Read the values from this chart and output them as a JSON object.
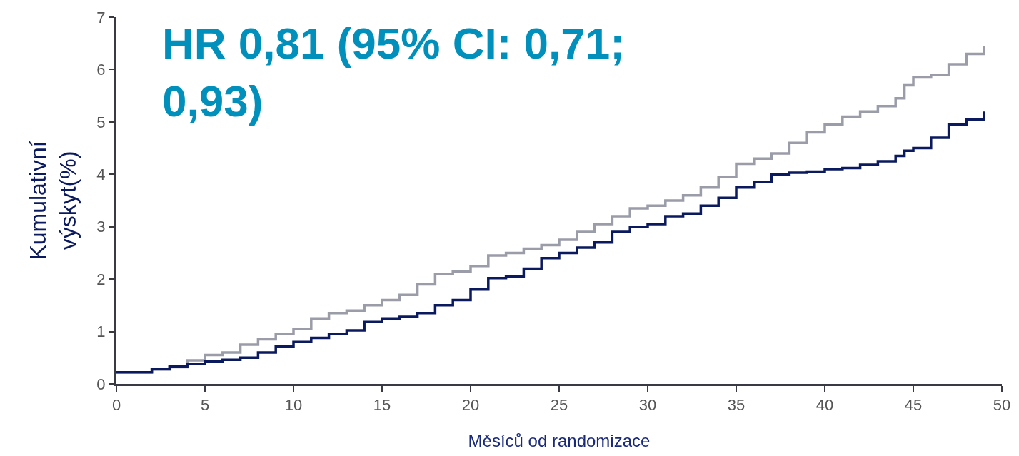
{
  "chart_data": {
    "type": "step",
    "xlabel": "Měsíců od randomizace",
    "ylabel": "Kumulativní\nvýskyt(%)",
    "annotations": [
      "HR 0,81 (95% CI: 0,71;\n0,93)"
    ],
    "x": [
      0,
      2,
      3,
      4,
      5,
      6,
      7,
      8,
      9,
      10,
      11,
      12,
      13,
      14,
      15,
      16,
      17,
      18,
      19,
      20,
      21,
      22,
      23,
      24,
      25,
      26,
      27,
      28,
      29,
      30,
      31,
      32,
      33,
      34,
      35,
      36,
      37,
      38,
      39,
      40,
      41,
      42,
      43,
      44,
      44.5,
      45,
      46,
      47,
      48,
      49
    ],
    "series": [
      {
        "color": "#9a9ca8",
        "values": [
          0.22,
          0.28,
          0.32,
          0.45,
          0.55,
          0.6,
          0.75,
          0.85,
          0.95,
          1.05,
          1.25,
          1.35,
          1.4,
          1.5,
          1.6,
          1.7,
          1.9,
          2.1,
          2.15,
          2.25,
          2.45,
          2.5,
          2.58,
          2.65,
          2.75,
          2.9,
          3.05,
          3.2,
          3.35,
          3.4,
          3.5,
          3.6,
          3.75,
          3.95,
          4.2,
          4.3,
          4.4,
          4.6,
          4.8,
          4.95,
          5.1,
          5.2,
          5.3,
          5.45,
          5.7,
          5.85,
          5.9,
          6.1,
          6.3,
          6.45
        ]
      },
      {
        "color": "#0b1a5e",
        "values": [
          0.22,
          0.28,
          0.33,
          0.38,
          0.43,
          0.46,
          0.5,
          0.6,
          0.72,
          0.8,
          0.88,
          0.95,
          1.02,
          1.18,
          1.25,
          1.28,
          1.35,
          1.5,
          1.6,
          1.8,
          2.02,
          2.05,
          2.2,
          2.4,
          2.5,
          2.6,
          2.7,
          2.9,
          3.0,
          3.05,
          3.2,
          3.25,
          3.4,
          3.55,
          3.75,
          3.85,
          4.0,
          4.03,
          4.05,
          4.1,
          4.12,
          4.18,
          4.25,
          4.35,
          4.45,
          4.5,
          4.7,
          4.95,
          5.05,
          5.2
        ]
      }
    ],
    "xlim": [
      0,
      50
    ],
    "xticks": [
      0,
      5,
      10,
      15,
      20,
      25,
      30,
      35,
      40,
      45,
      50
    ],
    "ylim": [
      0,
      7
    ],
    "yticks": [
      0,
      1,
      2,
      3,
      4,
      5,
      6,
      7
    ]
  }
}
